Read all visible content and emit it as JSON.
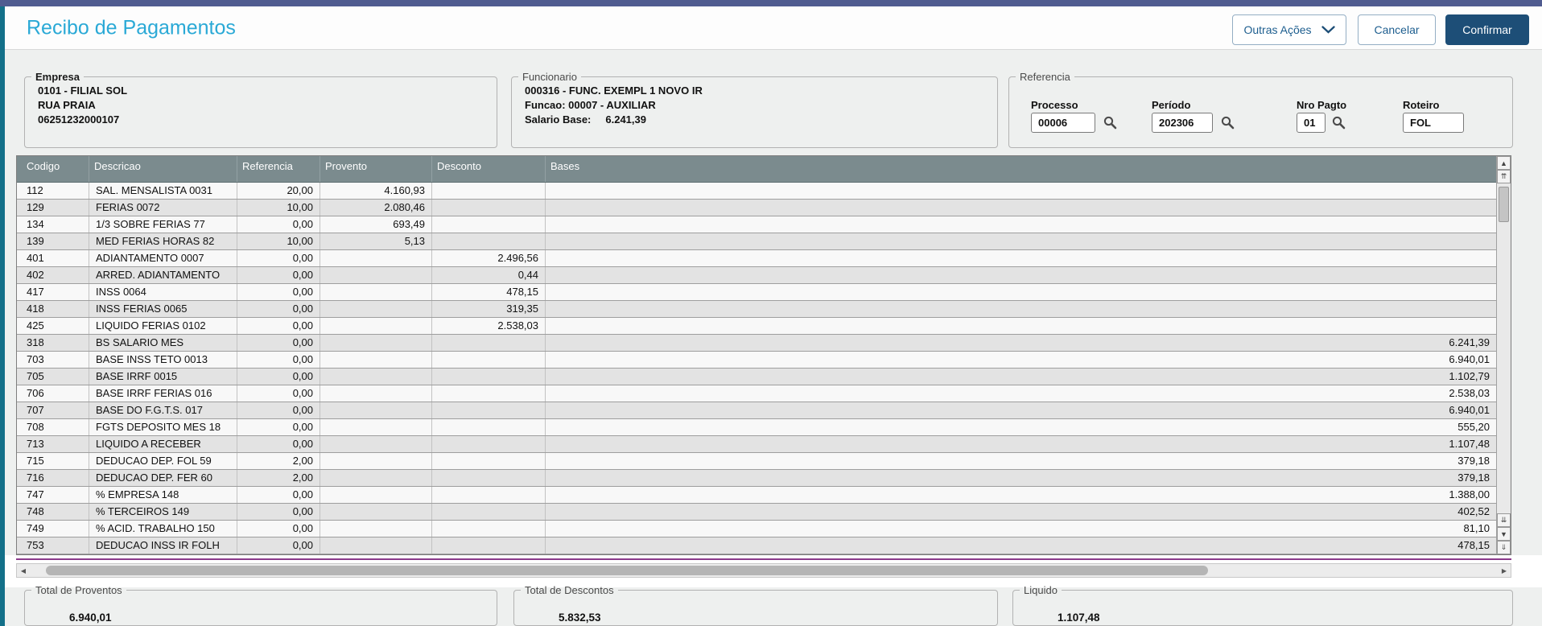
{
  "header": {
    "title": "Recibo de Pagamentos",
    "other_actions_label": "Outras Ações",
    "cancel_label": "Cancelar",
    "confirm_label": "Confirmar"
  },
  "empresa": {
    "legend": "Empresa",
    "line1": "0101 - FILIAL SOL",
    "line2": "RUA PRAIA",
    "line3": "06251232000107"
  },
  "funcionario": {
    "legend": "Funcionario",
    "line1": "000316 - FUNC. EXEMPL 1 NOVO IR",
    "line2": "Funcao: 00007 - AUXILIAR",
    "salario_label": "Salario Base:",
    "salario_value": "6.241,39"
  },
  "referencia": {
    "legend": "Referencia",
    "fields": [
      {
        "label": "Processo",
        "value": "00006"
      },
      {
        "label": "Período",
        "value": "202306"
      },
      {
        "label": "Nro Pagto",
        "value": "01"
      },
      {
        "label": "Roteiro",
        "value": "FOL"
      }
    ]
  },
  "grid": {
    "columns": [
      "Codigo",
      "Descricao",
      "Referencia",
      "Provento",
      "Desconto",
      "Bases"
    ],
    "col_keys": [
      "codigo",
      "descricao",
      "referencia",
      "provento",
      "desconto",
      "bases"
    ],
    "rows": [
      [
        "112",
        "SAL. MENSALISTA 0031",
        "20,00",
        "4.160,93",
        "",
        ""
      ],
      [
        "129",
        "FERIAS 0072",
        "10,00",
        "2.080,46",
        "",
        ""
      ],
      [
        "134",
        "1/3 SOBRE FERIAS 77",
        "0,00",
        "693,49",
        "",
        ""
      ],
      [
        "139",
        "MED FERIAS HORAS 82",
        "10,00",
        "5,13",
        "",
        ""
      ],
      [
        "401",
        "ADIANTAMENTO 0007",
        "0,00",
        "",
        "2.496,56",
        ""
      ],
      [
        "402",
        "ARRED. ADIANTAMENTO",
        "0,00",
        "",
        "0,44",
        ""
      ],
      [
        "417",
        "INSS 0064",
        "0,00",
        "",
        "478,15",
        ""
      ],
      [
        "418",
        "INSS FERIAS 0065",
        "0,00",
        "",
        "319,35",
        ""
      ],
      [
        "425",
        "LIQUIDO FERIAS 0102",
        "0,00",
        "",
        "2.538,03",
        ""
      ],
      [
        "318",
        "BS SALARIO MES",
        "0,00",
        "",
        "",
        "6.241,39"
      ],
      [
        "703",
        "BASE INSS TETO 0013",
        "0,00",
        "",
        "",
        "6.940,01"
      ],
      [
        "705",
        "BASE IRRF 0015",
        "0,00",
        "",
        "",
        "1.102,79"
      ],
      [
        "706",
        "BASE IRRF FERIAS 016",
        "0,00",
        "",
        "",
        "2.538,03"
      ],
      [
        "707",
        "BASE DO F.G.T.S. 017",
        "0,00",
        "",
        "",
        "6.940,01"
      ],
      [
        "708",
        "FGTS DEPOSITO MES 18",
        "0,00",
        "",
        "",
        "555,20"
      ],
      [
        "713",
        "LIQUIDO A RECEBER",
        "0,00",
        "",
        "",
        "1.107,48"
      ],
      [
        "715",
        "DEDUCAO DEP. FOL 59",
        "2,00",
        "",
        "",
        "379,18"
      ],
      [
        "716",
        "DEDUCAO DEP. FER 60",
        "2,00",
        "",
        "",
        "379,18"
      ],
      [
        "747",
        "% EMPRESA  148",
        "0,00",
        "",
        "",
        "1.388,00"
      ],
      [
        "748",
        "% TERCEIROS 149",
        "0,00",
        "",
        "",
        "402,52"
      ],
      [
        "749",
        "% ACID. TRABALHO 150",
        "0,00",
        "",
        "",
        "81,10"
      ],
      [
        "753",
        "DEDUCAO INSS IR FOLH",
        "0,00",
        "",
        "",
        "478,15"
      ]
    ]
  },
  "totals": {
    "proventos_legend": "Total de Proventos",
    "proventos_value": "6.940,01",
    "descontos_legend": "Total de Descontos",
    "descontos_value": "5.832,53",
    "liquido_legend": "Liquido",
    "liquido_value": "1.107,48"
  },
  "colors": {
    "topbar": "#505c90",
    "left_border": "#137089",
    "title": "#2aa9d6",
    "confirm_button": "#1d4e77",
    "grid_header_bg": "#7b8b8e",
    "purple_divider": "#8b3a8b"
  }
}
